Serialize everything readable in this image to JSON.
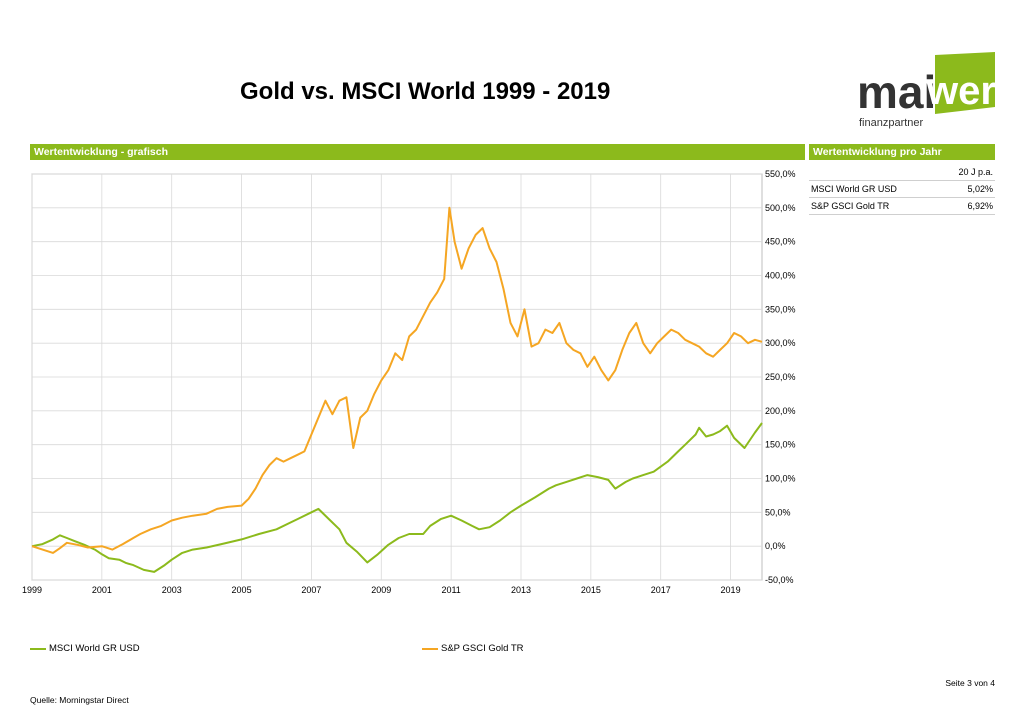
{
  "page": {
    "title": "Gold vs. MSCI World 1999 - 2019",
    "logo": {
      "main": "maiwerk",
      "part1": "mai",
      "part2": "werk",
      "sub": "finanzpartner"
    },
    "section_left": "Wertentwicklung - grafisch",
    "section_right": "Wertentwicklung pro Jahr",
    "table": {
      "header": "20 J p.a.",
      "rows": [
        {
          "label": "MSCI World GR USD",
          "value": "5,02%"
        },
        {
          "label": "S&P GSCI Gold TR",
          "value": "6,92%"
        }
      ]
    },
    "source": "Quelle: Morningstar Direct",
    "page_number": "Seite 3 von 4"
  },
  "colors": {
    "accent": "#8cba1c",
    "msci": "#8cba1c",
    "gold": "#f5a623",
    "grid": "#d9d9d9"
  },
  "chart_data": {
    "type": "line",
    "xlim": [
      1999.0,
      2019.9
    ],
    "ylim": [
      -50,
      550
    ],
    "yticks": [
      -50,
      0,
      50,
      100,
      150,
      200,
      250,
      300,
      350,
      400,
      450,
      500,
      550
    ],
    "ytick_labels": [
      "-50,0%",
      "0,0%",
      "50,0%",
      "100,0%",
      "150,0%",
      "200,0%",
      "250,0%",
      "300,0%",
      "350,0%",
      "400,0%",
      "450,0%",
      "500,0%",
      "550,0%"
    ],
    "xticks": [
      1999,
      2001,
      2003,
      2005,
      2007,
      2009,
      2011,
      2013,
      2015,
      2017,
      2019
    ],
    "xtick_labels": [
      "1999",
      "2001",
      "2003",
      "2005",
      "2007",
      "2009",
      "2011",
      "2013",
      "2015",
      "2017",
      "2019"
    ],
    "grid": true,
    "legend": "bottom",
    "series": [
      {
        "name": "MSCI World GR USD",
        "color": "#8cba1c",
        "x": [
          1999.0,
          1999.3,
          1999.6,
          1999.8,
          2000.0,
          2000.2,
          2000.5,
          2000.8,
          2001.0,
          2001.2,
          2001.5,
          2001.7,
          2001.9,
          2002.2,
          2002.5,
          2002.8,
          2003.0,
          2003.3,
          2003.6,
          2004.0,
          2004.5,
          2005.0,
          2005.5,
          2006.0,
          2006.4,
          2006.6,
          2007.0,
          2007.2,
          2007.5,
          2007.8,
          2008.0,
          2008.3,
          2008.6,
          2008.9,
          2009.2,
          2009.5,
          2009.8,
          2010.2,
          2010.4,
          2010.7,
          2011.0,
          2011.3,
          2011.6,
          2011.8,
          2012.1,
          2012.4,
          2012.7,
          2013.0,
          2013.4,
          2013.8,
          2014.0,
          2014.3,
          2014.6,
          2014.9,
          2015.2,
          2015.5,
          2015.7,
          2016.0,
          2016.2,
          2016.5,
          2016.8,
          2017.2,
          2017.5,
          2017.7,
          2018.0,
          2018.1,
          2018.3,
          2018.5,
          2018.7,
          2018.9,
          2019.1,
          2019.4,
          2019.7,
          2019.9
        ],
        "y": [
          0,
          3,
          10,
          16,
          12,
          8,
          2,
          -5,
          -12,
          -18,
          -20,
          -25,
          -28,
          -35,
          -38,
          -28,
          -20,
          -10,
          -5,
          -2,
          4,
          10,
          18,
          25,
          35,
          40,
          50,
          55,
          40,
          25,
          5,
          -8,
          -24,
          -12,
          2,
          12,
          18,
          18,
          30,
          40,
          45,
          38,
          30,
          25,
          28,
          38,
          50,
          60,
          72,
          85,
          90,
          95,
          100,
          105,
          102,
          98,
          85,
          95,
          100,
          105,
          110,
          125,
          140,
          150,
          165,
          175,
          162,
          165,
          170,
          178,
          160,
          145,
          168,
          182
        ]
      },
      {
        "name": "S&P GSCI Gold TR",
        "color": "#f5a623",
        "x": [
          1999.0,
          1999.3,
          1999.6,
          1999.8,
          2000.0,
          2000.3,
          2000.6,
          2001.0,
          2001.3,
          2001.6,
          2001.9,
          2002.1,
          2002.4,
          2002.7,
          2003.0,
          2003.3,
          2003.6,
          2004.0,
          2004.3,
          2004.6,
          2005.0,
          2005.2,
          2005.4,
          2005.6,
          2005.8,
          2006.0,
          2006.2,
          2006.4,
          2006.6,
          2006.8,
          2007.0,
          2007.2,
          2007.4,
          2007.6,
          2007.8,
          2008.0,
          2008.2,
          2008.4,
          2008.6,
          2008.8,
          2009.0,
          2009.2,
          2009.4,
          2009.6,
          2009.8,
          2010.0,
          2010.2,
          2010.4,
          2010.6,
          2010.8,
          2010.95,
          2011.1,
          2011.3,
          2011.5,
          2011.7,
          2011.9,
          2012.1,
          2012.3,
          2012.5,
          2012.7,
          2012.9,
          2013.1,
          2013.3,
          2013.5,
          2013.7,
          2013.9,
          2014.1,
          2014.3,
          2014.5,
          2014.7,
          2014.9,
          2015.1,
          2015.3,
          2015.5,
          2015.7,
          2015.9,
          2016.1,
          2016.3,
          2016.5,
          2016.7,
          2016.9,
          2017.1,
          2017.3,
          2017.5,
          2017.7,
          2017.9,
          2018.1,
          2018.3,
          2018.5,
          2018.7,
          2018.9,
          2019.1,
          2019.3,
          2019.5,
          2019.7,
          2019.9
        ],
        "y": [
          0,
          -5,
          -10,
          -3,
          5,
          2,
          -2,
          0,
          -5,
          3,
          12,
          18,
          25,
          30,
          38,
          42,
          45,
          48,
          55,
          58,
          60,
          70,
          85,
          105,
          120,
          130,
          125,
          130,
          135,
          140,
          165,
          190,
          215,
          195,
          215,
          220,
          145,
          190,
          200,
          225,
          245,
          260,
          285,
          275,
          310,
          320,
          340,
          360,
          375,
          395,
          500,
          450,
          410,
          440,
          460,
          470,
          440,
          420,
          380,
          330,
          310,
          350,
          295,
          300,
          320,
          315,
          330,
          300,
          290,
          285,
          265,
          280,
          260,
          245,
          260,
          290,
          315,
          330,
          300,
          285,
          300,
          310,
          320,
          315,
          305,
          300,
          295,
          285,
          280,
          290,
          300,
          315,
          310,
          300,
          305,
          302
        ]
      }
    ]
  }
}
